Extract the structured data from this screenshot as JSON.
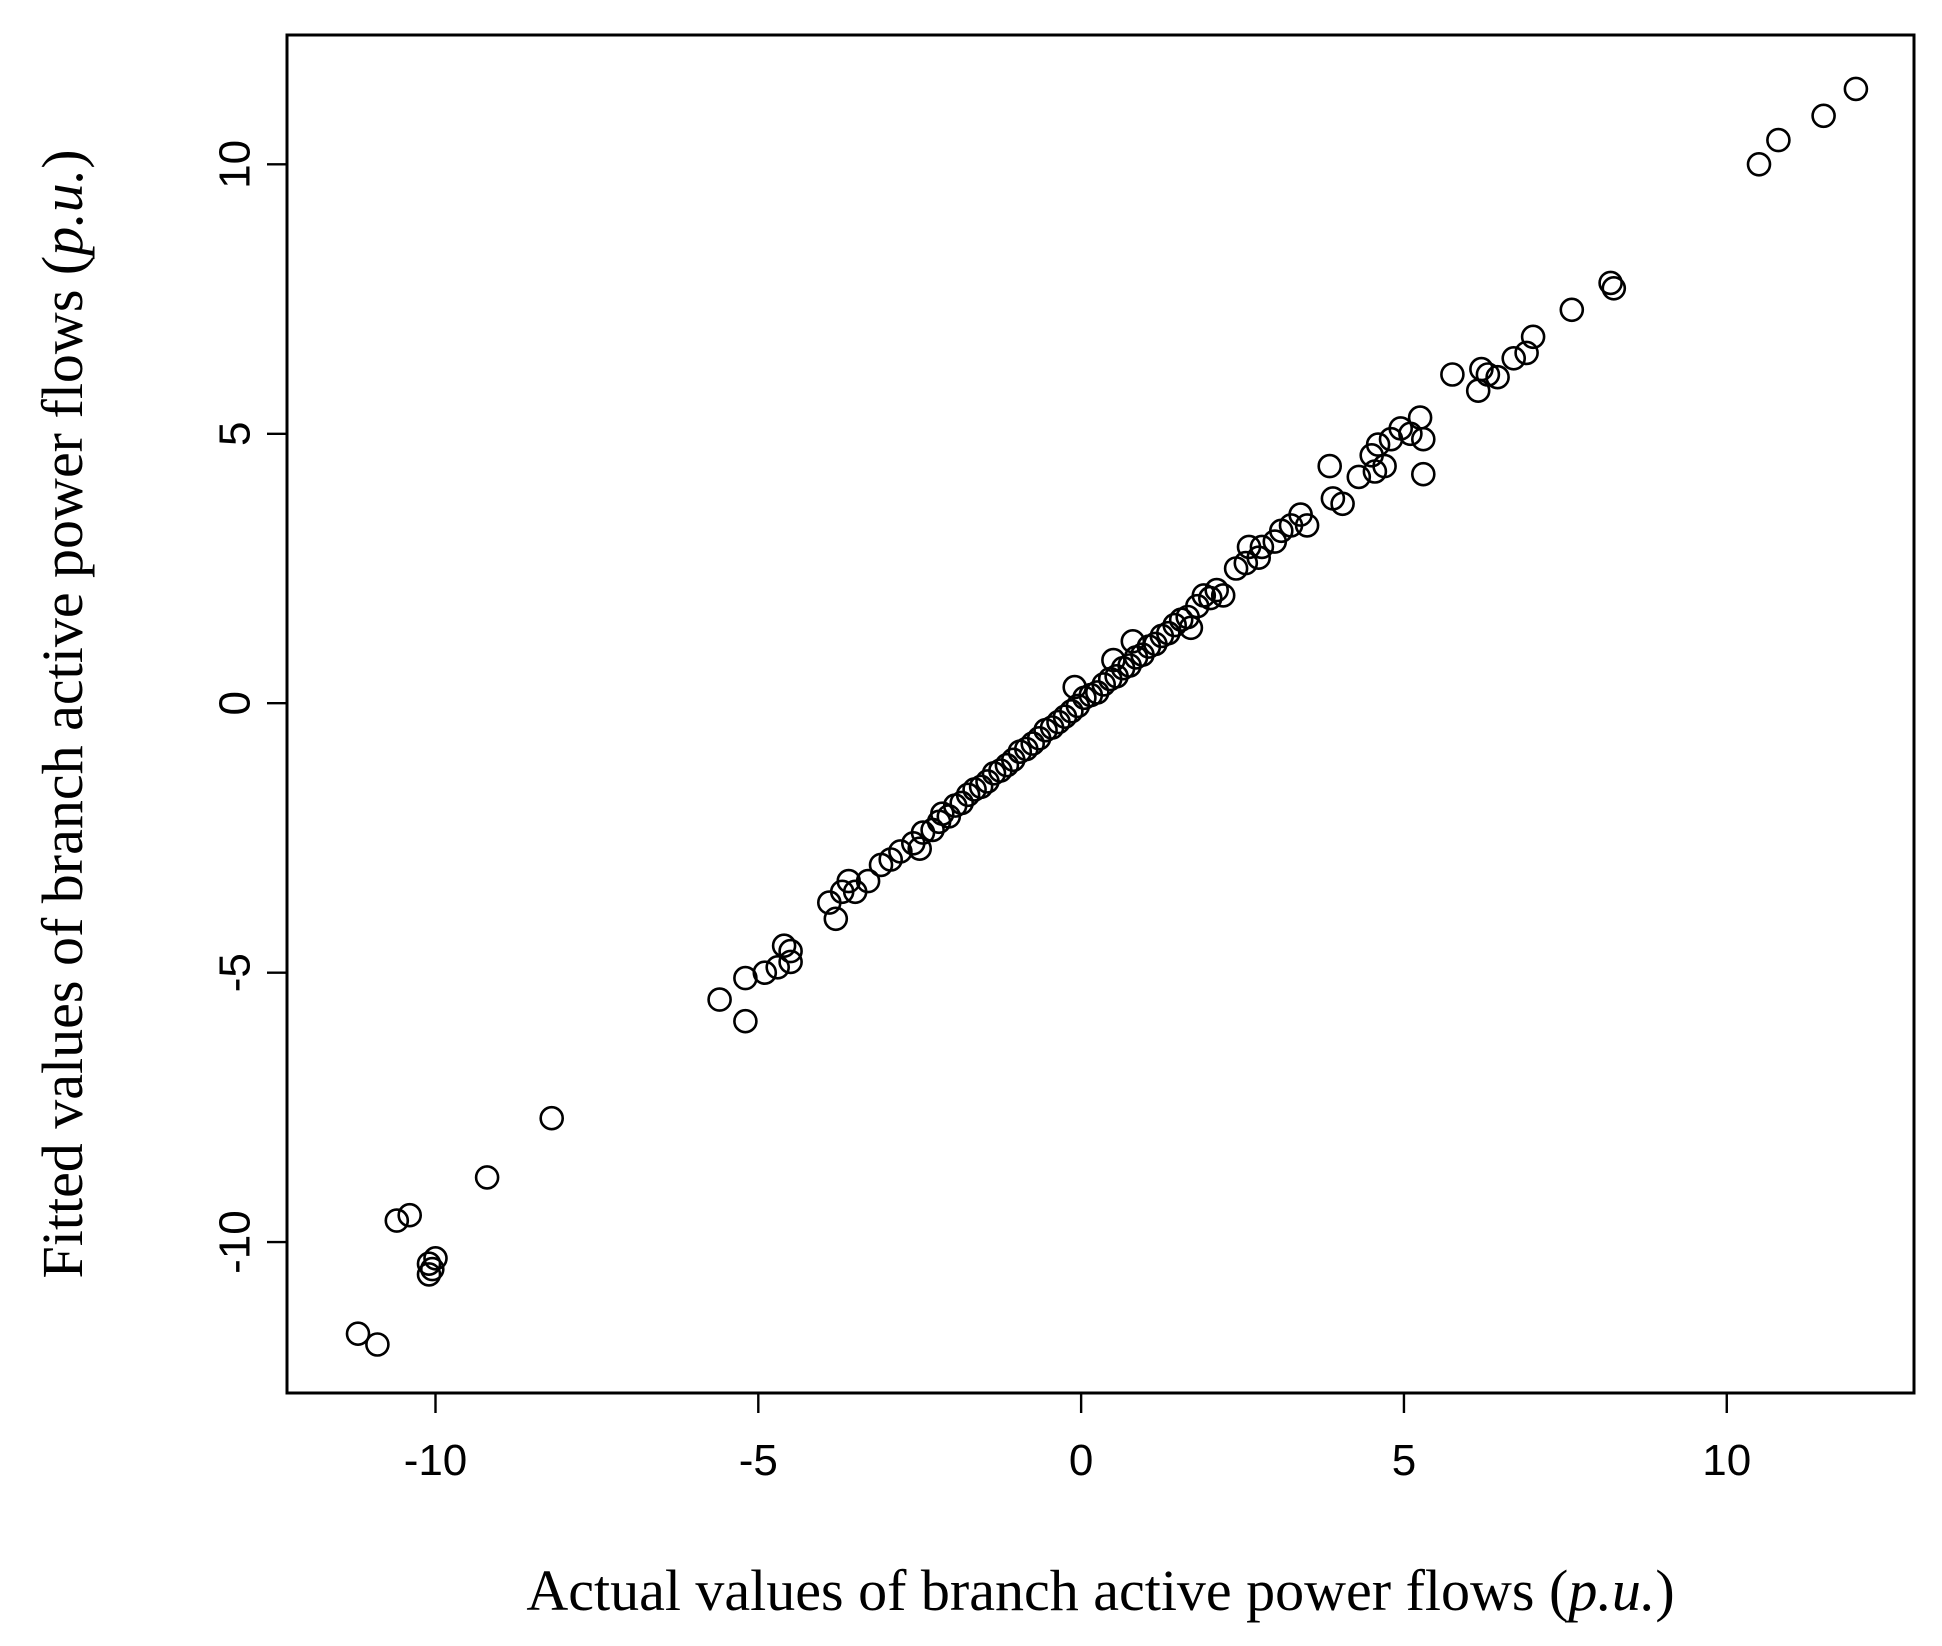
{
  "chart_data": {
    "type": "scatter",
    "title": "",
    "xlabel": {
      "prefix": "Actual values of branch active power flows (",
      "unit": "p.u.",
      "suffix": ")"
    },
    "ylabel": {
      "prefix": "Fitted values of branch active power flows (",
      "unit": "p.u.",
      "suffix": ")"
    },
    "xlim": [
      -12.3,
      12.9
    ],
    "ylim": [
      -12.8,
      12.4
    ],
    "xticks": [
      -10,
      -5,
      0,
      5,
      10
    ],
    "yticks": [
      -10,
      -5,
      0,
      5,
      10
    ],
    "xtick_labels": [
      "-10",
      "-5",
      "0",
      "5",
      "10"
    ],
    "ytick_labels": [
      "-10",
      "-5",
      "0",
      "5",
      "10"
    ],
    "grid": false,
    "legend": "none",
    "marker": "open-circle",
    "series": [
      {
        "name": "",
        "points": [
          [
            -11.2,
            -11.7
          ],
          [
            -10.9,
            -11.9
          ],
          [
            -10.6,
            -9.6
          ],
          [
            -10.4,
            -9.5
          ],
          [
            -10.1,
            -10.4
          ],
          [
            -10.1,
            -10.6
          ],
          [
            -10.05,
            -10.5
          ],
          [
            -10.0,
            -10.3
          ],
          [
            -9.2,
            -8.8
          ],
          [
            -8.2,
            -7.7
          ],
          [
            -5.6,
            -5.5
          ],
          [
            -5.2,
            -5.1
          ],
          [
            -5.2,
            -5.9
          ],
          [
            -4.9,
            -5.0
          ],
          [
            -4.7,
            -4.9
          ],
          [
            -4.6,
            -4.5
          ],
          [
            -4.5,
            -4.6
          ],
          [
            -4.5,
            -4.8
          ],
          [
            -3.9,
            -3.7
          ],
          [
            -3.8,
            -4.0
          ],
          [
            -3.7,
            -3.5
          ],
          [
            -3.6,
            -3.3
          ],
          [
            -3.5,
            -3.5
          ],
          [
            -3.3,
            -3.3
          ],
          [
            -3.1,
            -3.0
          ],
          [
            -2.95,
            -2.9
          ],
          [
            -2.8,
            -2.75
          ],
          [
            -2.6,
            -2.6
          ],
          [
            -2.5,
            -2.7
          ],
          [
            -2.45,
            -2.4
          ],
          [
            -2.3,
            -2.35
          ],
          [
            -2.2,
            -2.2
          ],
          [
            -2.15,
            -2.05
          ],
          [
            -2.05,
            -2.1
          ],
          [
            -1.95,
            -1.9
          ],
          [
            -1.85,
            -1.85
          ],
          [
            -1.75,
            -1.7
          ],
          [
            -1.65,
            -1.6
          ],
          [
            -1.55,
            -1.55
          ],
          [
            -1.45,
            -1.45
          ],
          [
            -1.35,
            -1.3
          ],
          [
            -1.25,
            -1.25
          ],
          [
            -1.15,
            -1.15
          ],
          [
            -1.05,
            -1.05
          ],
          [
            -0.95,
            -0.9
          ],
          [
            -0.85,
            -0.85
          ],
          [
            -0.75,
            -0.75
          ],
          [
            -0.65,
            -0.65
          ],
          [
            -0.55,
            -0.5
          ],
          [
            -0.45,
            -0.45
          ],
          [
            -0.35,
            -0.35
          ],
          [
            -0.25,
            -0.25
          ],
          [
            -0.15,
            -0.15
          ],
          [
            -0.05,
            -0.05
          ],
          [
            -0.1,
            0.3
          ],
          [
            0.05,
            0.1
          ],
          [
            0.15,
            0.15
          ],
          [
            0.25,
            0.2
          ],
          [
            0.35,
            0.35
          ],
          [
            0.45,
            0.45
          ],
          [
            0.5,
            0.8
          ],
          [
            0.55,
            0.5
          ],
          [
            0.65,
            0.65
          ],
          [
            0.75,
            0.7
          ],
          [
            0.8,
            1.15
          ],
          [
            0.85,
            0.85
          ],
          [
            0.95,
            0.9
          ],
          [
            1.05,
            1.05
          ],
          [
            1.15,
            1.1
          ],
          [
            1.25,
            1.25
          ],
          [
            1.35,
            1.3
          ],
          [
            1.45,
            1.45
          ],
          [
            1.55,
            1.55
          ],
          [
            1.65,
            1.6
          ],
          [
            1.7,
            1.4
          ],
          [
            1.8,
            1.8
          ],
          [
            1.9,
            2.0
          ],
          [
            2.0,
            1.95
          ],
          [
            2.1,
            2.1
          ],
          [
            2.2,
            2.0
          ],
          [
            2.4,
            2.5
          ],
          [
            2.55,
            2.6
          ],
          [
            2.6,
            2.9
          ],
          [
            2.75,
            2.7
          ],
          [
            2.8,
            2.9
          ],
          [
            3.0,
            3.0
          ],
          [
            3.1,
            3.2
          ],
          [
            3.25,
            3.3
          ],
          [
            3.4,
            3.5
          ],
          [
            3.5,
            3.3
          ],
          [
            3.85,
            4.4
          ],
          [
            3.9,
            3.8
          ],
          [
            4.05,
            3.7
          ],
          [
            4.3,
            4.2
          ],
          [
            4.5,
            4.6
          ],
          [
            4.55,
            4.3
          ],
          [
            4.6,
            4.8
          ],
          [
            4.7,
            4.4
          ],
          [
            4.8,
            4.9
          ],
          [
            4.95,
            5.1
          ],
          [
            5.1,
            5.0
          ],
          [
            5.25,
            5.3
          ],
          [
            5.3,
            4.9
          ],
          [
            5.3,
            4.25
          ],
          [
            5.75,
            6.1
          ],
          [
            6.15,
            5.8
          ],
          [
            6.2,
            6.2
          ],
          [
            6.3,
            6.1
          ],
          [
            6.45,
            6.05
          ],
          [
            6.7,
            6.4
          ],
          [
            6.9,
            6.5
          ],
          [
            7.0,
            6.8
          ],
          [
            7.6,
            7.3
          ],
          [
            8.2,
            7.8
          ],
          [
            8.25,
            7.7
          ],
          [
            10.5,
            10.0
          ],
          [
            10.8,
            10.45
          ],
          [
            11.5,
            10.9
          ],
          [
            12.0,
            11.4
          ]
        ]
      }
    ]
  }
}
